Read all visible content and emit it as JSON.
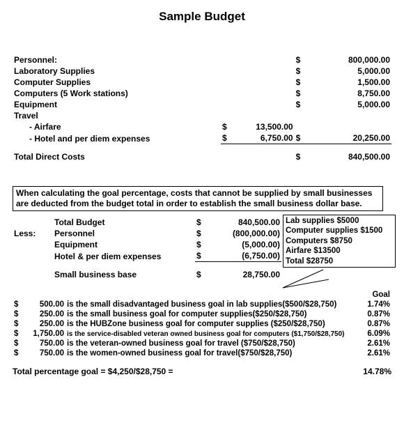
{
  "title": "Sample Budget",
  "budget_items": {
    "personnel": {
      "label": "Personnel:",
      "cur": "$",
      "amount": "800,000.00"
    },
    "lab_supplies": {
      "label": "Laboratory Supplies",
      "cur": "$",
      "amount": "5,000.00"
    },
    "computer_supplies": {
      "label": "Computer Supplies",
      "cur": "$",
      "amount": "1,500.00"
    },
    "computers": {
      "label": "Computers (5 Work stations)",
      "cur": "$",
      "amount": "8,750.00"
    },
    "equipment": {
      "label": "Equipment",
      "cur": "$",
      "amount": "5,000.00"
    },
    "travel_label": "Travel",
    "airfare": {
      "label": "- Airfare",
      "sub_cur": "$",
      "sub_amount": "13,500.00"
    },
    "hotel": {
      "label": "- Hotel and per diem expenses",
      "sub_cur": "$",
      "sub_amount": "6,750.00",
      "cur": "$",
      "amount": "20,250.00"
    },
    "total_direct": {
      "label": "Total Direct Costs",
      "cur": "$",
      "amount": "840,500.00"
    }
  },
  "note": "When calculating the goal percentage, costs that cannot be supplied by small businesses are deducted from the budget total in order to establish the small business dollar base.",
  "calc": {
    "total_budget": {
      "label": "Total Budget",
      "cur": "$",
      "amount": "840,500.00"
    },
    "less_label": "Less:",
    "personnel": {
      "label": "Personnel",
      "cur": "$",
      "amount": "(800,000.00)"
    },
    "equipment": {
      "label": "Equipment",
      "cur": "$",
      "amount": "(5,000.00)"
    },
    "hotel": {
      "label": "Hotel & per diem expenses",
      "cur": "$",
      "amount": "(6,750.00)"
    },
    "base": {
      "label": "Small business base",
      "cur": "$",
      "amount": "28,750.00"
    }
  },
  "callout": {
    "l1": "Lab supplies $5000",
    "l2": "Computer supplies $1500",
    "l3": "Computers $8750",
    "l4": "Airfare $13500",
    "l5": "Total $28750"
  },
  "goals_header": "Goal",
  "goals": [
    {
      "cur": "$",
      "amt": "500.00",
      "desc": "is the small disadvantaged business goal in lab supplies($500/$28,750)",
      "pct": "1.74%"
    },
    {
      "cur": "$",
      "amt": "250.00",
      "desc": "is the small business goal for computer supplies($250/$28,750)",
      "pct": "0.87%"
    },
    {
      "cur": "$",
      "amt": "250.00",
      "desc": "is the HUBZone business goal for computer supplies ($250/$28,750)",
      "pct": "0.87%"
    },
    {
      "cur": "$",
      "amt": "1,750.00",
      "desc": "is the service-disabled veteran owned business goal for computers ($1,750/$28,750)",
      "small": true,
      "pct": "6.09%"
    },
    {
      "cur": "$",
      "amt": "750.00",
      "desc": "is the veteran-owned business goal for travel ($750/$28,750)",
      "pct": "2.61%"
    },
    {
      "cur": "$",
      "amt": "750.00",
      "desc": "is the women-owned business goal for travel($750/$28,750)",
      "pct": "2.61%"
    }
  ],
  "total_pct": {
    "label": "Total percentage goal = $4,250/$28,750 =",
    "value": "14.78%"
  },
  "style": {
    "background": "#ffffff",
    "text_color": "#000000",
    "border_color": "#000000",
    "font_family": "Arial",
    "title_fontsize": 17,
    "body_fontsize": 12,
    "goals_fontsize": 11.5,
    "small_fontsize": 10
  }
}
